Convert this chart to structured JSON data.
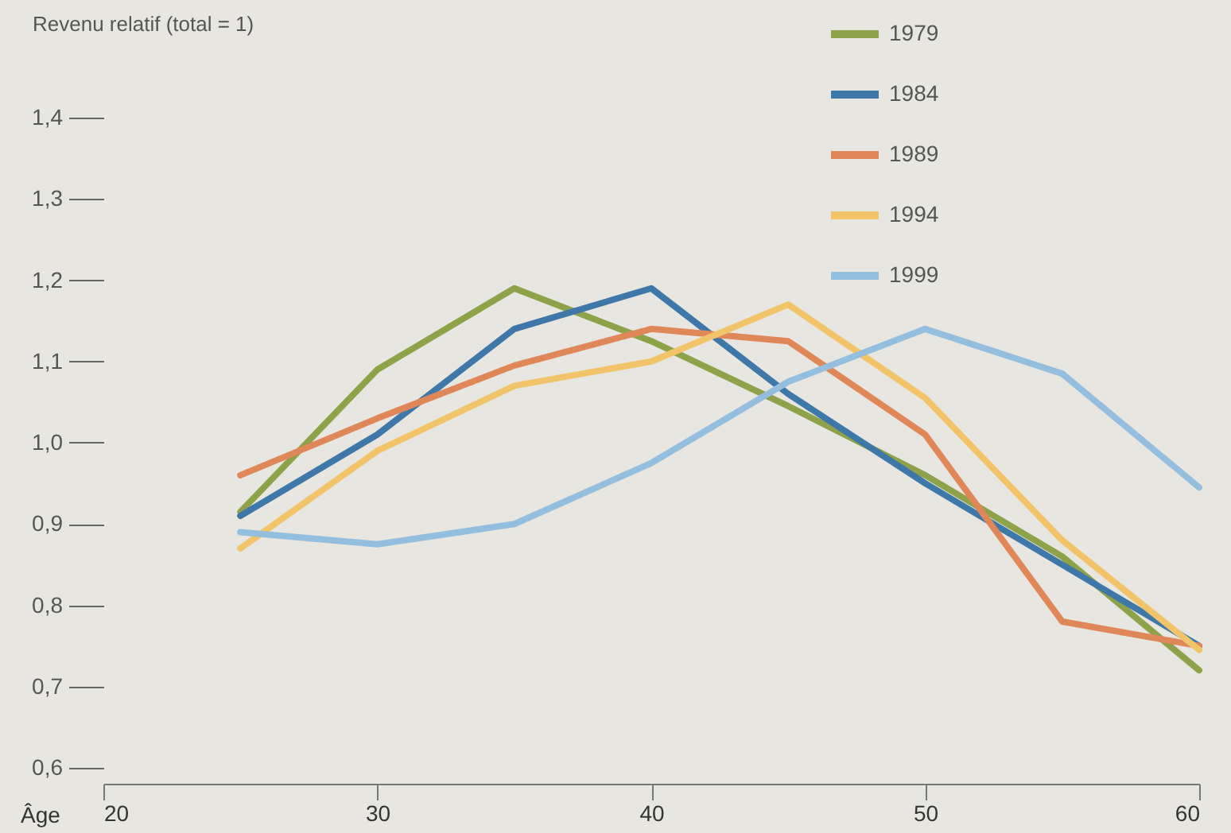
{
  "chart_data": {
    "type": "line",
    "xlabel": "Âge",
    "ylabel": "Revenu relatif (total = 1)",
    "x": [
      25,
      30,
      35,
      40,
      45,
      50,
      55,
      60
    ],
    "series": [
      {
        "name": "1979",
        "color": "#8ea24a",
        "values": [
          0.915,
          1.09,
          1.19,
          1.125,
          1.045,
          0.96,
          0.86,
          0.72
        ]
      },
      {
        "name": "1984",
        "color": "#3f78a8",
        "values": [
          0.91,
          1.01,
          1.14,
          1.19,
          1.06,
          0.95,
          0.85,
          0.75
        ]
      },
      {
        "name": "1989",
        "color": "#e0875a",
        "values": [
          0.96,
          1.03,
          1.095,
          1.14,
          1.125,
          1.01,
          0.78,
          0.75
        ]
      },
      {
        "name": "1994",
        "color": "#f2c46a",
        "values": [
          0.87,
          0.99,
          1.07,
          1.1,
          1.17,
          1.055,
          0.88,
          0.745
        ]
      },
      {
        "name": "1999",
        "color": "#94bedd",
        "values": [
          0.89,
          0.875,
          0.9,
          0.975,
          1.075,
          1.14,
          1.085,
          0.945
        ]
      }
    ],
    "xlim": [
      20,
      60
    ],
    "xticks": [
      20,
      30,
      40,
      50,
      60
    ],
    "ylim": [
      0.6,
      1.4
    ],
    "yticks": [
      {
        "value": 0.6,
        "label": "0,6"
      },
      {
        "value": 0.7,
        "label": "0,7"
      },
      {
        "value": 0.8,
        "label": "0,8"
      },
      {
        "value": 0.9,
        "label": "0,9"
      },
      {
        "value": 1.0,
        "label": "1,0"
      },
      {
        "value": 1.1,
        "label": "1,1"
      },
      {
        "value": 1.2,
        "label": "1,2"
      },
      {
        "value": 1.3,
        "label": "1,3"
      },
      {
        "value": 1.4,
        "label": "1,4"
      }
    ],
    "legend": "top right",
    "grid": false,
    "line_style": "solid"
  }
}
